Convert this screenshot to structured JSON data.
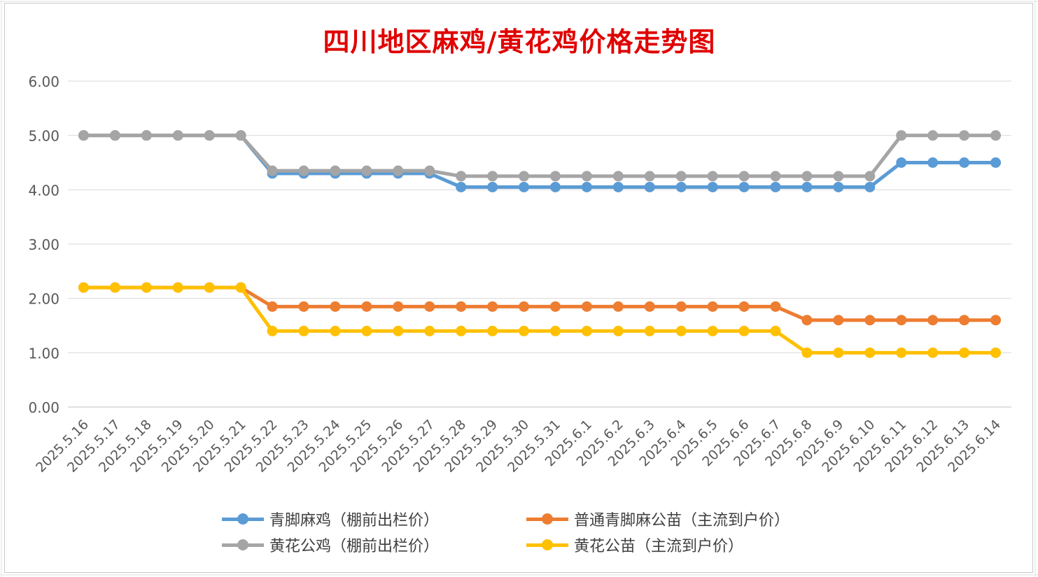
{
  "chart_data": {
    "type": "line",
    "title": "四川地区麻鸡/黄花鸡价格走势图",
    "xlabel": "",
    "ylabel": "",
    "ylim": [
      0,
      6
    ],
    "yticks": [
      "0.00",
      "1.00",
      "2.00",
      "3.00",
      "4.00",
      "5.00",
      "6.00"
    ],
    "grid": true,
    "legend_position": "bottom",
    "categories": [
      "2025.5.16",
      "2025.5.17",
      "2025.5.18",
      "2025.5.19",
      "2025.5.20",
      "2025.5.21",
      "2025.5.22",
      "2025.5.23",
      "2025.5.24",
      "2025.5.25",
      "2025.5.26",
      "2025.5.27",
      "2025.5.28",
      "2025.5.29",
      "2025.5.30",
      "2025.5.31",
      "2025.6.1",
      "2025.6.2",
      "2025.6.3",
      "2025.6.4",
      "2025.6.5",
      "2025.6.6",
      "2025.6.7",
      "2025.6.8",
      "2025.6.9",
      "2025.6.10",
      "2025.6.11",
      "2025.6.12",
      "2025.6.13",
      "2025.6.14"
    ],
    "series": [
      {
        "name": "青脚麻鸡（棚前出栏价）",
        "color": "#5b9bd5",
        "values": [
          5.0,
          5.0,
          5.0,
          5.0,
          5.0,
          5.0,
          4.3,
          4.3,
          4.3,
          4.3,
          4.3,
          4.3,
          4.05,
          4.05,
          4.05,
          4.05,
          4.05,
          4.05,
          4.05,
          4.05,
          4.05,
          4.05,
          4.05,
          4.05,
          4.05,
          4.05,
          4.5,
          4.5,
          4.5,
          4.5
        ]
      },
      {
        "name": "普通青脚麻公苗（主流到户价）",
        "color": "#ed7d31",
        "values": [
          2.2,
          2.2,
          2.2,
          2.2,
          2.2,
          2.2,
          1.85,
          1.85,
          1.85,
          1.85,
          1.85,
          1.85,
          1.85,
          1.85,
          1.85,
          1.85,
          1.85,
          1.85,
          1.85,
          1.85,
          1.85,
          1.85,
          1.85,
          1.6,
          1.6,
          1.6,
          1.6,
          1.6,
          1.6,
          1.6
        ]
      },
      {
        "name": "黄花公鸡（棚前出栏价）",
        "color": "#a5a5a5",
        "values": [
          5.0,
          5.0,
          5.0,
          5.0,
          5.0,
          5.0,
          4.35,
          4.35,
          4.35,
          4.35,
          4.35,
          4.35,
          4.25,
          4.25,
          4.25,
          4.25,
          4.25,
          4.25,
          4.25,
          4.25,
          4.25,
          4.25,
          4.25,
          4.25,
          4.25,
          4.25,
          5.0,
          5.0,
          5.0,
          5.0
        ]
      },
      {
        "name": "黄花公苗（主流到户价）",
        "color": "#ffc000",
        "values": [
          2.2,
          2.2,
          2.2,
          2.2,
          2.2,
          2.2,
          1.4,
          1.4,
          1.4,
          1.4,
          1.4,
          1.4,
          1.4,
          1.4,
          1.4,
          1.4,
          1.4,
          1.4,
          1.4,
          1.4,
          1.4,
          1.4,
          1.4,
          1.0,
          1.0,
          1.0,
          1.0,
          1.0,
          1.0,
          1.0
        ]
      }
    ],
    "legend_order": [
      0,
      1,
      2,
      3
    ]
  }
}
